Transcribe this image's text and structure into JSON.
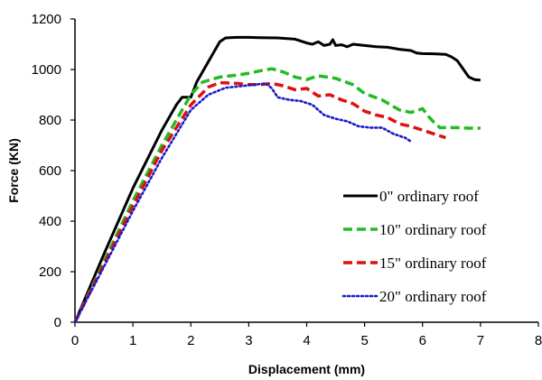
{
  "chart_data": {
    "type": "line",
    "xlabel": "Displacement (mm)",
    "ylabel": "Force (KN)",
    "xlim": [
      0,
      8
    ],
    "ylim": [
      0,
      1200
    ],
    "x_ticks": [
      "0",
      "1",
      "2",
      "3",
      "4",
      "5",
      "6",
      "7",
      "8"
    ],
    "y_ticks": [
      "0",
      "200",
      "400",
      "600",
      "800",
      "1000",
      "1200"
    ],
    "grid": false,
    "legend_position": "right",
    "series": [
      {
        "name": "0\" ordinary roof",
        "color": "#000000",
        "style": "solid",
        "x": [
          0,
          0.5,
          1.0,
          1.5,
          1.75,
          1.85,
          1.95,
          2.0,
          2.1,
          2.3,
          2.5,
          2.6,
          2.8,
          3.0,
          3.2,
          3.5,
          3.8,
          4.0,
          4.1,
          4.2,
          4.3,
          4.4,
          4.45,
          4.5,
          4.6,
          4.7,
          4.8,
          5.0,
          5.2,
          5.4,
          5.6,
          5.8,
          5.9,
          6.0,
          6.2,
          6.4,
          6.5,
          6.6,
          6.8,
          6.9,
          7.0
        ],
        "y": [
          0,
          270,
          530,
          760,
          860,
          890,
          890,
          890,
          950,
          1030,
          1110,
          1125,
          1127,
          1127,
          1126,
          1125,
          1120,
          1105,
          1100,
          1110,
          1095,
          1100,
          1118,
          1095,
          1098,
          1090,
          1100,
          1095,
          1090,
          1088,
          1080,
          1075,
          1065,
          1063,
          1062,
          1060,
          1050,
          1035,
          970,
          960,
          958
        ]
      },
      {
        "name": "10\" ordinary roof",
        "color": "#22bb22",
        "style": "dashed",
        "x": [
          0,
          0.5,
          1.0,
          1.5,
          2.0,
          2.2,
          2.5,
          2.8,
          3.0,
          3.2,
          3.4,
          3.6,
          3.8,
          4.0,
          4.2,
          4.5,
          4.8,
          5.0,
          5.3,
          5.6,
          5.8,
          6.0,
          6.1,
          6.2,
          6.3,
          6.4,
          6.6,
          6.8,
          7.0
        ],
        "y": [
          0,
          240,
          480,
          700,
          900,
          950,
          970,
          978,
          985,
          995,
          1003,
          990,
          970,
          960,
          975,
          965,
          940,
          905,
          880,
          840,
          830,
          845,
          815,
          790,
          770,
          770,
          770,
          768,
          768
        ]
      },
      {
        "name": "15\" ordinary roof",
        "color": "#dd1111",
        "style": "dashed",
        "x": [
          0,
          0.5,
          1.0,
          1.5,
          2.0,
          2.3,
          2.5,
          2.8,
          3.0,
          3.2,
          3.4,
          3.6,
          3.8,
          4.0,
          4.2,
          4.4,
          4.6,
          4.8,
          5.0,
          5.2,
          5.4,
          5.6,
          5.8,
          6.0,
          6.2,
          6.4
        ],
        "y": [
          0,
          230,
          460,
          680,
          860,
          930,
          948,
          945,
          940,
          940,
          945,
          935,
          920,
          925,
          895,
          900,
          880,
          865,
          835,
          820,
          810,
          785,
          775,
          760,
          745,
          730
        ]
      },
      {
        "name": "20\" ordinary roof",
        "color": "#1a1acc",
        "style": "dotted",
        "x": [
          0,
          0.5,
          1.0,
          1.5,
          2.0,
          2.3,
          2.6,
          2.9,
          3.1,
          3.3,
          3.4,
          3.5,
          3.7,
          3.9,
          4.1,
          4.3,
          4.5,
          4.7,
          4.9,
          5.1,
          5.3,
          5.5,
          5.7,
          5.8
        ],
        "y": [
          0,
          220,
          440,
          650,
          840,
          900,
          928,
          935,
          940,
          945,
          925,
          890,
          880,
          875,
          860,
          820,
          805,
          795,
          775,
          770,
          770,
          745,
          730,
          715
        ]
      }
    ]
  }
}
